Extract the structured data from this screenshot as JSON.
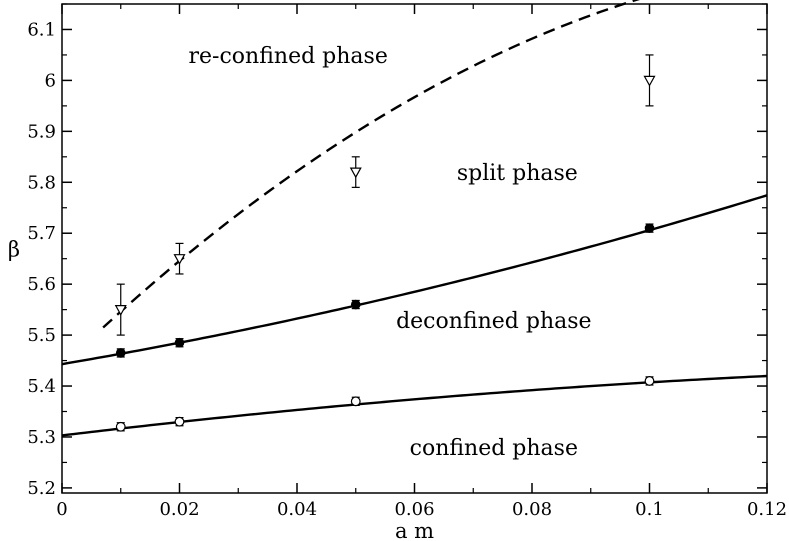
{
  "chart_data": {
    "type": "scatter",
    "title": "",
    "xlabel": "a m",
    "ylabel": "β",
    "xlim": [
      0,
      0.12
    ],
    "ylim": [
      5.19,
      6.15
    ],
    "x_ticks": [
      0,
      0.02,
      0.04,
      0.06,
      0.08,
      0.1,
      0.12
    ],
    "x_tick_labels": [
      "0",
      "0.02",
      "0.04",
      "0.06",
      "0.08",
      "0.1",
      "0.12"
    ],
    "y_ticks": [
      5.2,
      5.3,
      5.4,
      5.5,
      5.6,
      5.7,
      5.8,
      5.9,
      6.0,
      6.1
    ],
    "y_tick_labels": [
      "5.2",
      "5.3",
      "5.4",
      "5.5",
      "5.6",
      "5.7",
      "5.8",
      "5.9",
      "6",
      "6.1"
    ],
    "grid": false,
    "series": [
      {
        "marker": "open-triangle-down",
        "line": "dashed",
        "points": [
          {
            "x": 0.01,
            "y": 5.55,
            "err": 0.05
          },
          {
            "x": 0.02,
            "y": 5.65,
            "err": 0.03
          },
          {
            "x": 0.05,
            "y": 5.82,
            "err": 0.03
          },
          {
            "x": 0.1,
            "y": 6.0,
            "err": 0.05
          }
        ],
        "fit": {
          "x_start": 0.007,
          "x_end": 0.12,
          "coeffs": [
            5.439,
            11.1,
            -38.3
          ]
        }
      },
      {
        "marker": "filled-circle",
        "line": "solid",
        "points": [
          {
            "x": 0.01,
            "y": 5.465,
            "err": 0.008
          },
          {
            "x": 0.02,
            "y": 5.485,
            "err": 0.008
          },
          {
            "x": 0.05,
            "y": 5.56,
            "err": 0.008
          },
          {
            "x": 0.1,
            "y": 5.71,
            "err": 0.008
          }
        ],
        "fit": {
          "x_start": 0,
          "x_end": 0.12,
          "coeffs": [
            5.443,
            1.97,
            6.6
          ]
        }
      },
      {
        "marker": "open-circle",
        "line": "solid",
        "points": [
          {
            "x": 0.01,
            "y": 5.32,
            "err": 0.008
          },
          {
            "x": 0.02,
            "y": 5.33,
            "err": 0.008
          },
          {
            "x": 0.05,
            "y": 5.37,
            "err": 0.008
          },
          {
            "x": 0.1,
            "y": 5.41,
            "err": 0.008
          }
        ],
        "fit": {
          "x_start": 0,
          "x_end": 0.12,
          "coeffs": [
            5.303,
            1.389,
            -3.47
          ]
        }
      }
    ],
    "annotations": [
      {
        "text": "re-confined phase",
        "x": 0.0385,
        "y": 6.05
      },
      {
        "text": "split phase",
        "x": 0.0775,
        "y": 5.82
      },
      {
        "text": "deconfined phase",
        "x": 0.0735,
        "y": 5.53
      },
      {
        "text": "confined phase",
        "x": 0.0735,
        "y": 5.28
      }
    ]
  }
}
